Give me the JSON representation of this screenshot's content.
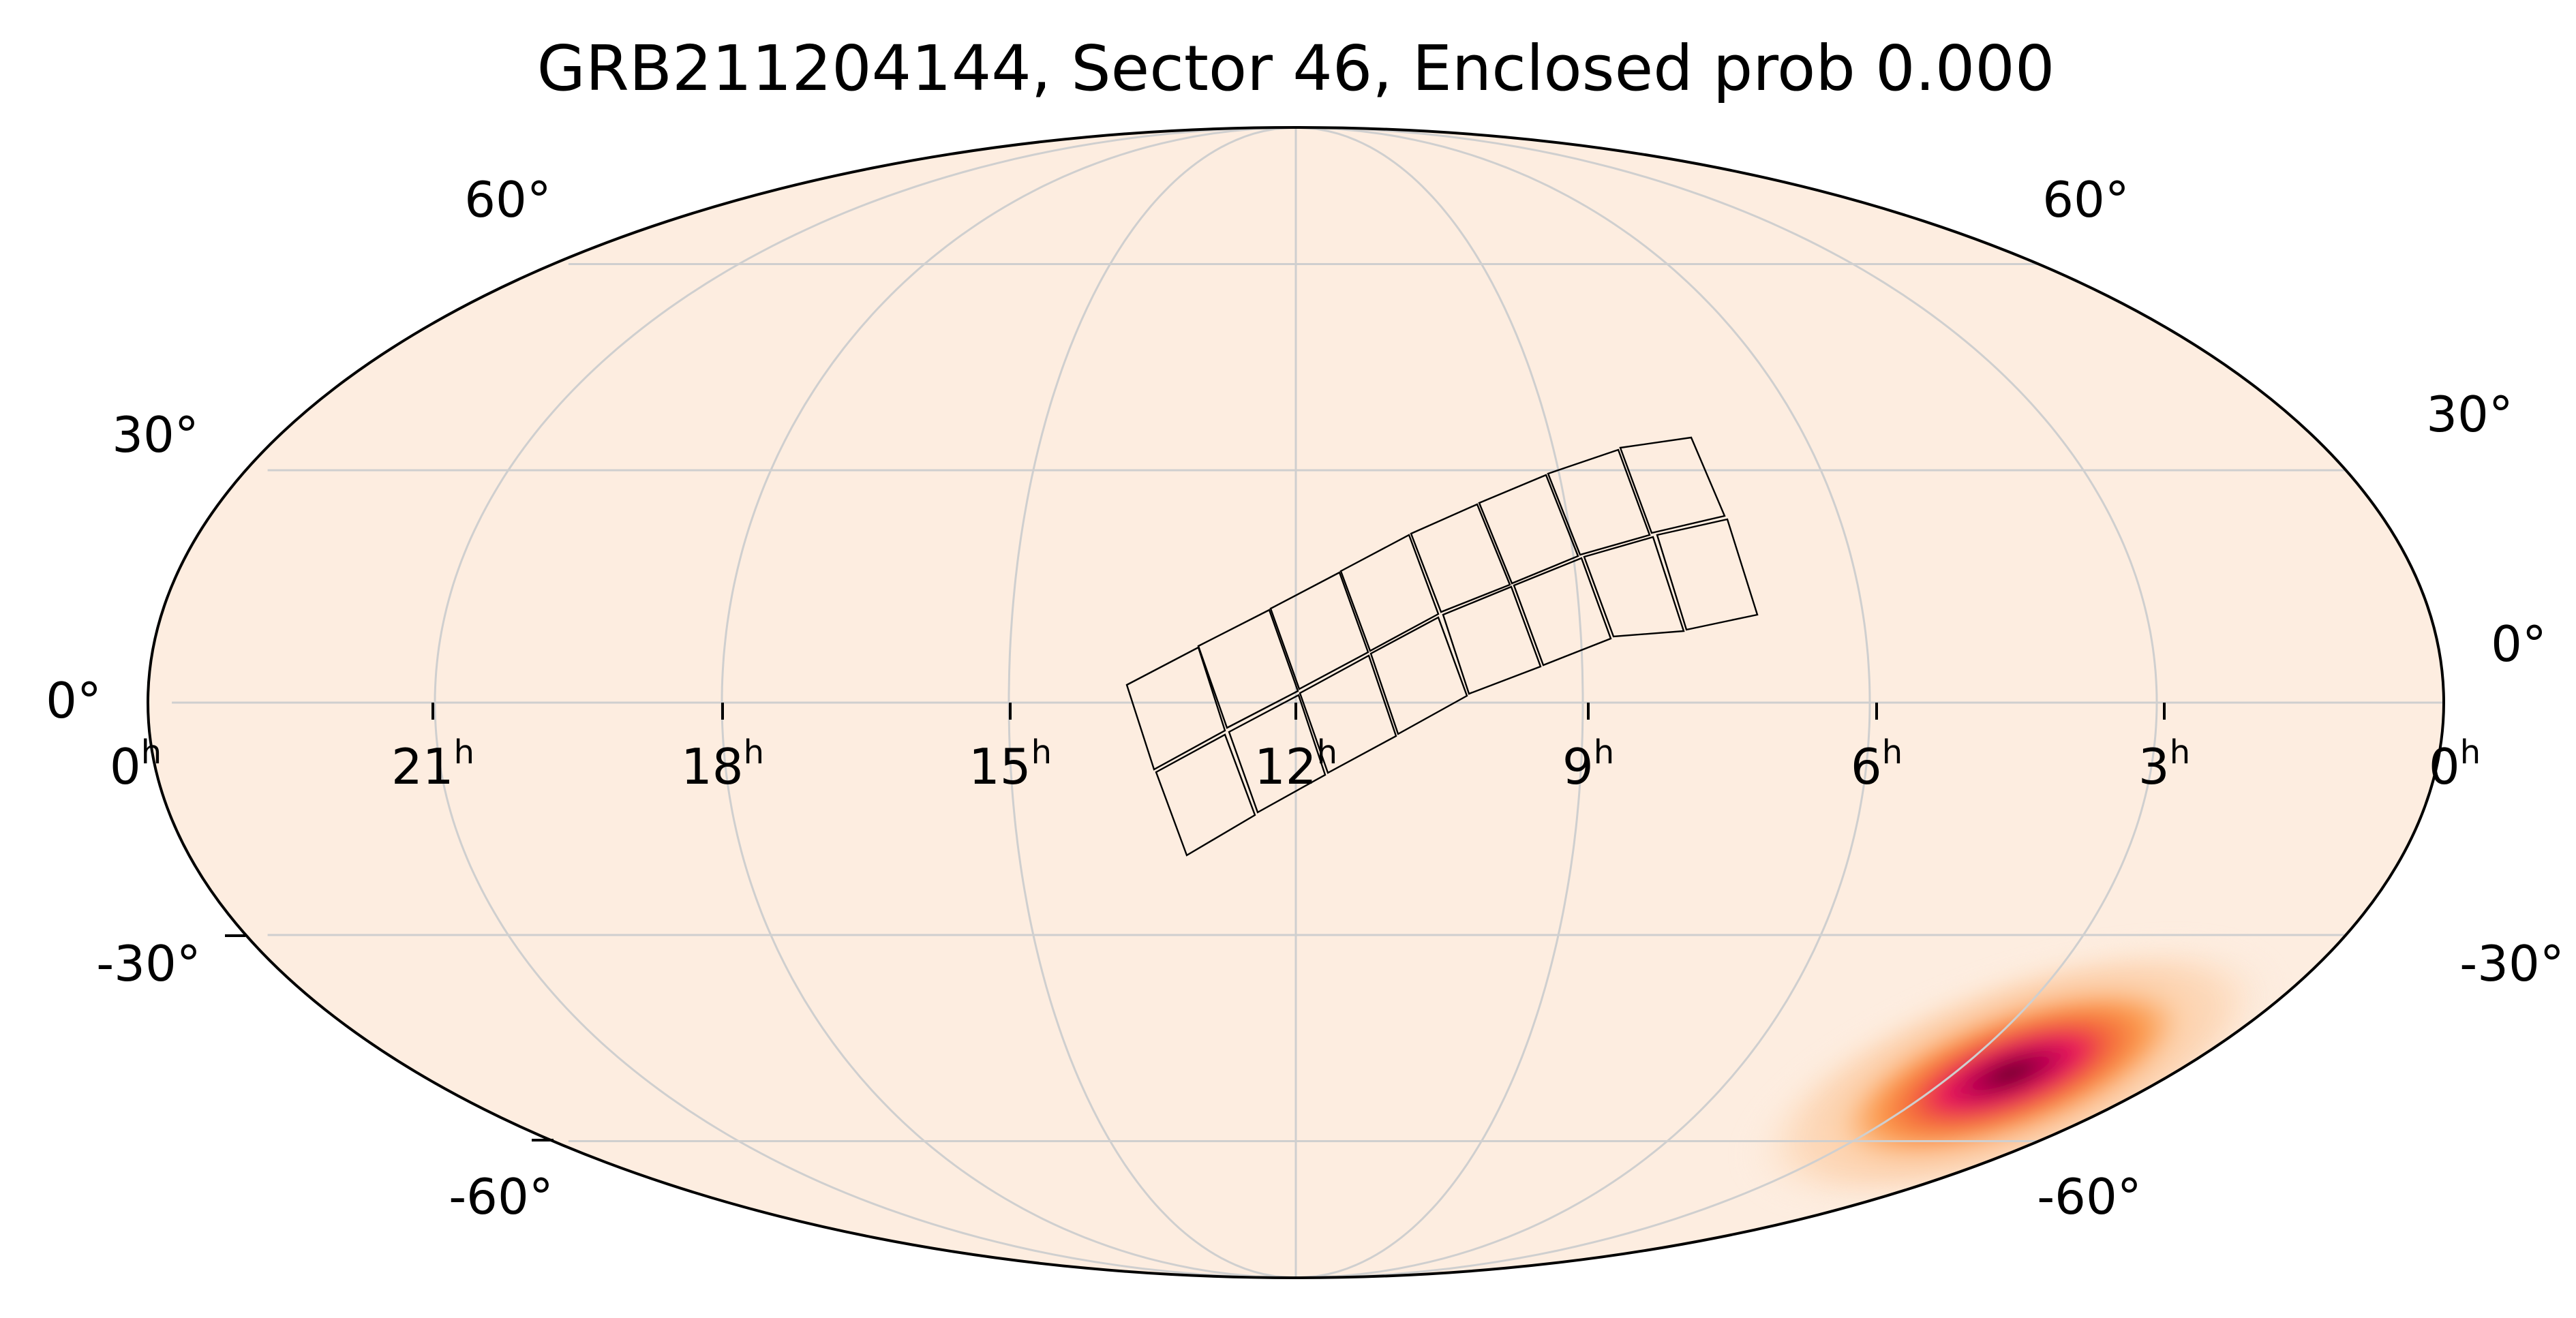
{
  "chart_data": {
    "type": "heatmap",
    "title": "GRB211204144, Sector 46, Enclosed prob 0.000",
    "projection": "mollweide",
    "grid": true,
    "ra_ticks_hours": [
      0,
      21,
      18,
      15,
      12,
      9,
      6,
      3,
      0
    ],
    "ra_tick_label_suffix": "h",
    "dec_ticks_degrees": [
      60,
      30,
      0,
      -30,
      -60
    ],
    "dec_ticks_left": [
      "60°",
      "30°",
      "0°",
      "-30°",
      "-60°"
    ],
    "dec_ticks_right": [
      "60°",
      "30°",
      "0°",
      "-30°",
      "-60°"
    ],
    "colormap": {
      "background": "#fdede0",
      "low": "#fdd3ad",
      "mid_low": "#fb9a4c",
      "mid": "#f4683a",
      "mid_high": "#e6105e",
      "high": "#a8004b",
      "peak": "#3b0010"
    },
    "grid_color": "#cfcfcf",
    "probability_peak": {
      "ra_hours": 4.4,
      "dec_degrees": -48
    },
    "footprint": {
      "description_free": true,
      "camera_rows": 2,
      "ccds_per_row": 8
    }
  }
}
